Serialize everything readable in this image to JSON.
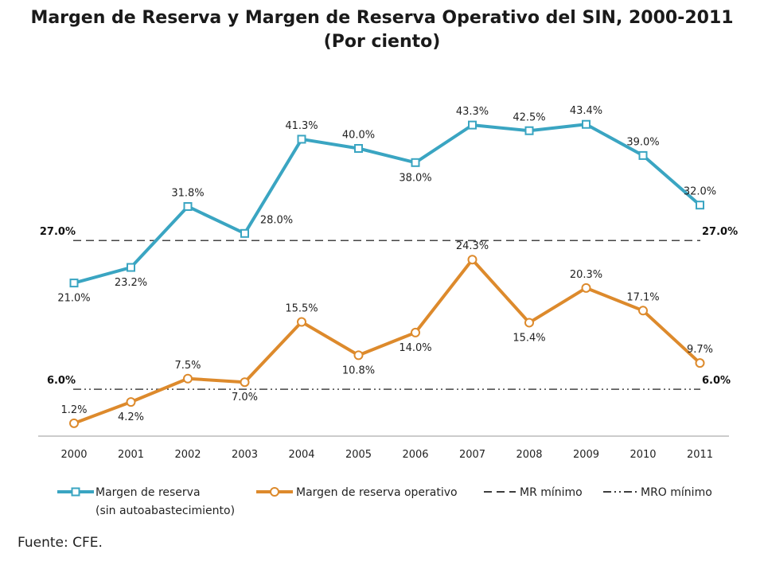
{
  "chart_data": {
    "type": "line",
    "title": "Margen de Reserva y Margen de Reserva Operativo del SIN, 2000-2011",
    "subtitle": "(Por ciento)",
    "categories": [
      "2000",
      "2001",
      "2002",
      "2003",
      "2004",
      "2005",
      "2006",
      "2007",
      "2008",
      "2009",
      "2010",
      "2011"
    ],
    "series": [
      {
        "name": "Margen de reserva",
        "name_line2": "(sin autoabastecimiento)",
        "values": [
          21.0,
          23.2,
          31.8,
          28.0,
          41.3,
          40.0,
          38.0,
          43.3,
          42.5,
          43.4,
          39.0,
          32.0
        ],
        "labels": [
          "21.0%",
          "23.2%",
          "31.8%",
          "28.0%",
          "41.3%",
          "40.0%",
          "38.0%",
          "43.3%",
          "42.5%",
          "43.4%",
          "39.0%",
          "32.0%"
        ],
        "color": "#3aa5c2",
        "marker": "square"
      },
      {
        "name": "Margen de reserva operativo",
        "values": [
          1.2,
          4.2,
          7.5,
          7.0,
          15.5,
          10.8,
          14.0,
          24.3,
          15.4,
          20.3,
          17.1,
          9.7
        ],
        "labels": [
          "1.2%",
          "4.2%",
          "7.5%",
          "7.0%",
          "15.5%",
          "10.8%",
          "14.0%",
          "24.3%",
          "15.4%",
          "20.3%",
          "17.1%",
          "9.7%"
        ],
        "color": "#dd8a2c",
        "marker": "circle"
      }
    ],
    "reference_lines": [
      {
        "name": "MR mínimo",
        "value": 27.0,
        "label": "27.0%",
        "style": "dashed"
      },
      {
        "name": "MRO mínimo",
        "value": 6.0,
        "label": "6.0%",
        "style": "dash-dot-dot"
      }
    ],
    "ylim": [
      0,
      50
    ],
    "grid": false,
    "legend_position": "bottom"
  },
  "source": "Fuente: CFE."
}
